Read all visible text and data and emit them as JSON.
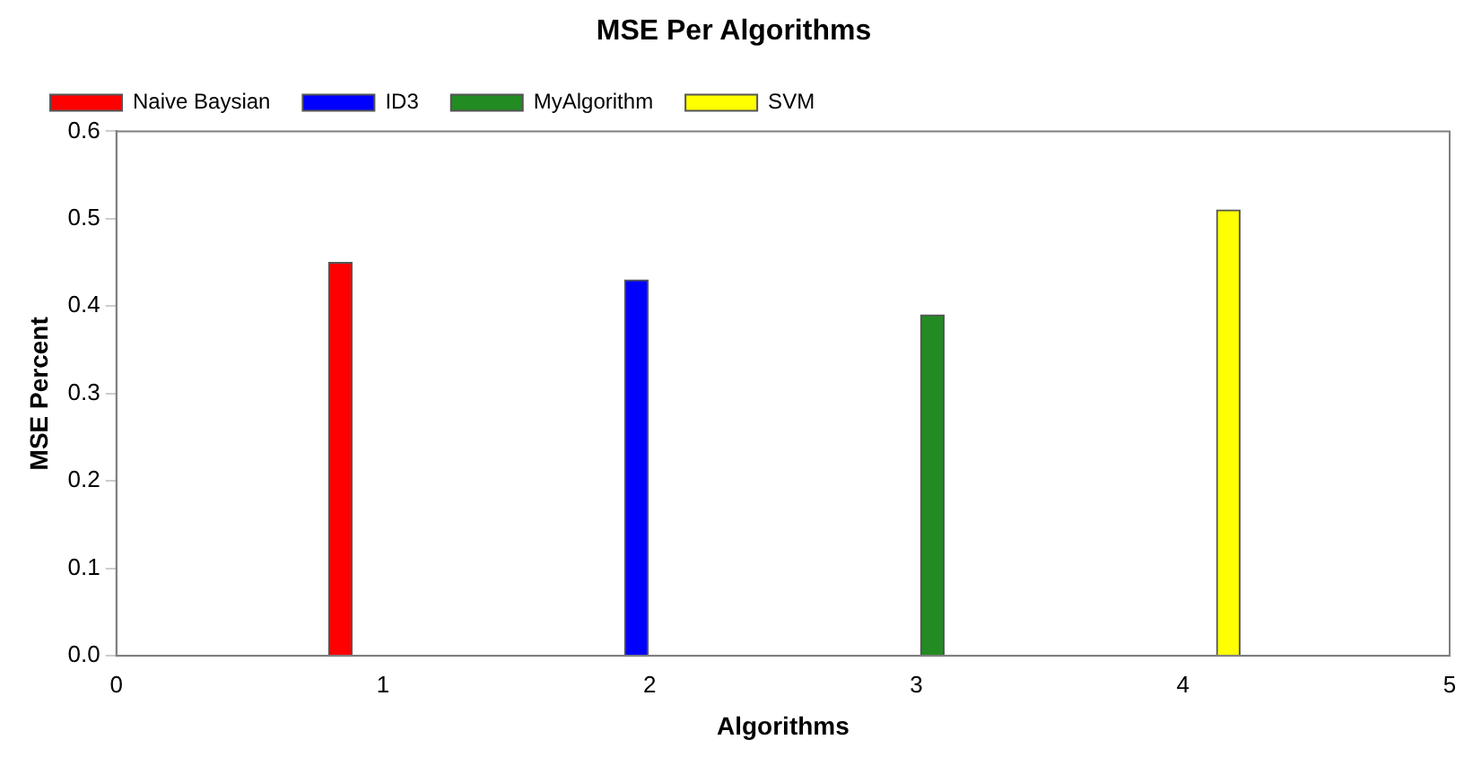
{
  "chart_data": {
    "type": "bar",
    "title": "MSE Per Algorithms",
    "xlabel": "Algorithms",
    "ylabel": "MSE Percent",
    "xlim": [
      0,
      5
    ],
    "xticks": [
      0,
      1,
      2,
      3,
      4,
      5
    ],
    "ylim": [
      0,
      0.6
    ],
    "yticks": [
      {
        "value": 0,
        "label": "0.0"
      },
      0.1,
      0.2,
      0.3,
      0.4,
      0.5,
      0.6
    ],
    "series": [
      {
        "name": "Naive Baysian",
        "color": "#ff0000",
        "x": [
          0.84
        ],
        "values": [
          0.45
        ]
      },
      {
        "name": "ID3",
        "color": "#0000ff",
        "x": [
          1.95
        ],
        "values": [
          0.43
        ]
      },
      {
        "name": "MyAlgorithm",
        "color": "#228b22",
        "x": [
          3.06
        ],
        "values": [
          0.39
        ]
      },
      {
        "name": "SVM",
        "color": "#ffff00",
        "x": [
          4.17
        ],
        "values": [
          0.51
        ]
      }
    ],
    "legend": "top",
    "grid": false
  }
}
